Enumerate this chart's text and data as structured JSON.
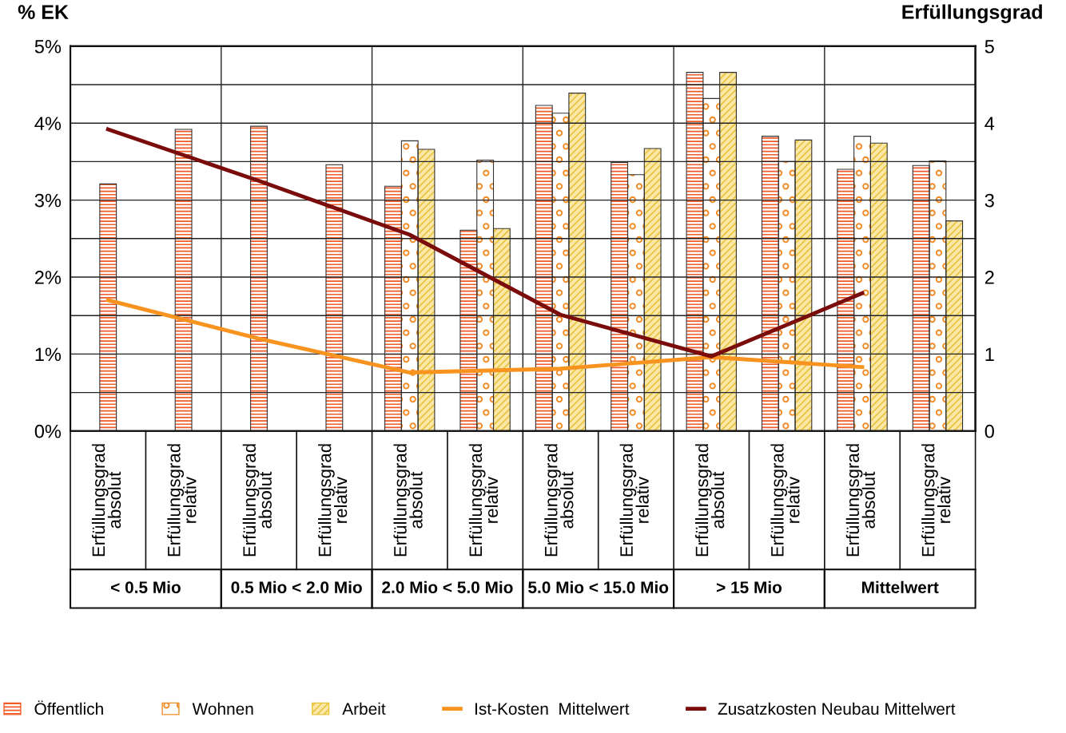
{
  "chart_data": {
    "type": "bar",
    "ylabel": "% EK",
    "y2label": "Erfüllungsgrad",
    "categories": [
      "Erfüllungsgrad\nabsolut",
      "Erfüllungsgrad\nrelativ",
      "Erfüllungsgrad\nabsolut",
      "Erfüllungsgrad\nrelativ",
      "Erfüllungsgrad\nabsolut",
      "Erfüllungsgrad\nrelativ",
      "Erfüllungsgrad\nabsolut",
      "Erfüllungsgrad\nrelativ",
      "Erfüllungsgrad\nabsolut",
      "Erfüllungsgrad\nrelativ",
      "Erfüllungsgrad\nabsolut",
      "Erfüllungsgrad\nrelativ"
    ],
    "annotations": [
      "< 0.5 Mio",
      "0.5 Mio < 2.0 Mio",
      "2.0 Mio < 5.0 Mio",
      "5.0 Mio < 15.0 Mio",
      "> 15 Mio",
      "Mittelwert"
    ],
    "series": [
      {
        "name": "Öffentlich",
        "color": "#f05a28",
        "axis": "y2",
        "values": [
          3.21,
          3.92,
          3.96,
          3.46,
          3.18,
          2.61,
          4.23,
          3.49,
          4.66,
          3.83,
          3.4,
          3.45
        ]
      },
      {
        "name": "Wohnen",
        "color": "#f28c28",
        "axis": "y2",
        "values": [
          null,
          null,
          null,
          null,
          3.77,
          3.52,
          4.13,
          3.33,
          4.32,
          3.5,
          3.83,
          3.51
        ]
      },
      {
        "name": "Arbeit",
        "color": "#e8c43a",
        "axis": "y2",
        "values": [
          null,
          null,
          null,
          null,
          3.66,
          2.63,
          4.39,
          3.67,
          4.66,
          3.78,
          3.74,
          2.73
        ]
      },
      {
        "name": "Ist-Kosten  Mittelwert",
        "type": "line",
        "color": "#f7931e",
        "values": [
          1.7,
          null,
          1.2,
          null,
          0.76,
          null,
          0.81,
          null,
          0.96,
          null,
          0.83,
          null
        ]
      },
      {
        "name": "Zusatzkosten Neubau Mittelwert",
        "type": "line",
        "color": "#7a0c0c",
        "values": [
          3.92,
          null,
          3.25,
          null,
          2.55,
          null,
          1.51,
          null,
          0.97,
          null,
          1.79,
          null
        ]
      }
    ],
    "ylim": [
      0,
      5
    ],
    "yticks": [
      {
        "value": 0,
        "label": "0%"
      },
      {
        "value": 0.5,
        "label": null
      },
      {
        "value": 1,
        "label": "1%"
      },
      {
        "value": 1.5,
        "label": null
      },
      {
        "value": 2,
        "label": "2%"
      },
      {
        "value": 2.5,
        "label": null
      },
      {
        "value": 3,
        "label": "3%"
      },
      {
        "value": 3.5,
        "label": null
      },
      {
        "value": 4,
        "label": "4%"
      },
      {
        "value": 4.5,
        "label": null
      },
      {
        "value": 5,
        "label": "5%"
      }
    ],
    "y2lim": [
      0,
      5
    ],
    "y2ticks": [
      0,
      1,
      2,
      3,
      4,
      5
    ],
    "grid": "y",
    "legend": "bottom",
    "line_style": "solid",
    "marker": "none"
  }
}
